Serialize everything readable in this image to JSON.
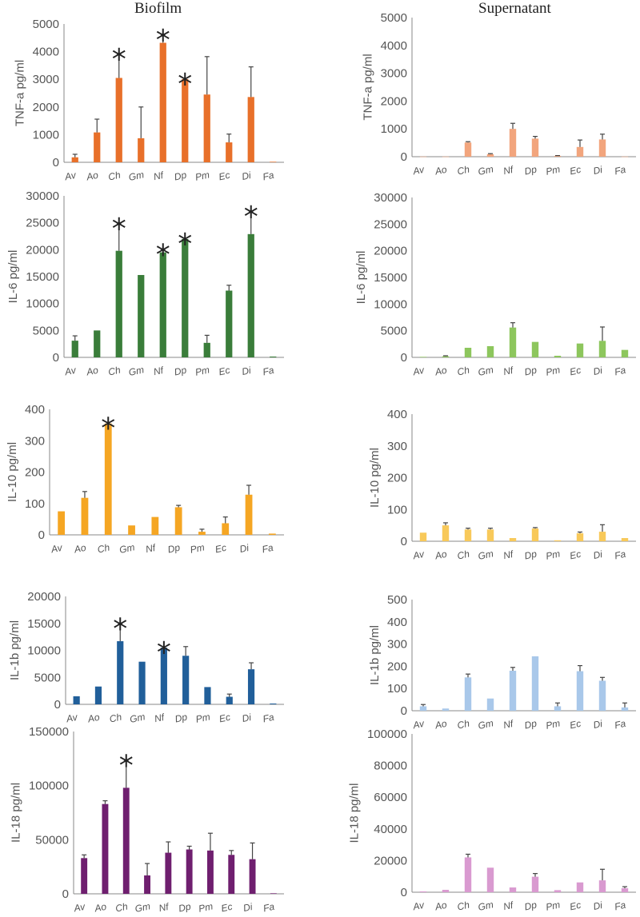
{
  "titles": {
    "biofilm": "Biofilm",
    "supernatant": "Supernatant"
  },
  "colors": {
    "tnf_biofilm": "#e8702a",
    "tnf_super": "#f2a57d",
    "il6_biofilm": "#3a7d3a",
    "il6_super": "#8dc65d",
    "il10_biofilm": "#f5a623",
    "il10_super": "#f8c95a",
    "il1b_biofilm": "#215f9a",
    "il1b_super": "#a9c8ea",
    "il18_biofilm": "#6f1f6f",
    "il18_super": "#d99ad0",
    "error_bar": "#444444",
    "axis": "#888888"
  },
  "chart_data": [
    {
      "id": "tnf-biofilm",
      "type": "bar",
      "title": "Biofilm",
      "ylabel": "TNF-a pg/ml",
      "ylim": [
        0,
        5000
      ],
      "ticks": [
        "0",
        "1000",
        "2000",
        "3000",
        "4000",
        "5000"
      ],
      "categories": [
        "Av",
        "Ao",
        "Ch",
        "Gm",
        "Nf",
        "Dp",
        "Pm",
        "Ec",
        "Di",
        "Fa"
      ],
      "values": [
        180,
        1080,
        3050,
        870,
        4320,
        3010,
        2450,
        720,
        2360,
        20
      ],
      "errors": [
        110,
        480,
        850,
        1130,
        280,
        0,
        1370,
        300,
        1090,
        0
      ],
      "significant": [
        "Ch",
        "Nf",
        "Dp"
      ],
      "color_key": "tnf_biofilm"
    },
    {
      "id": "tnf-super",
      "type": "bar",
      "title": "Supernatant",
      "ylabel": "TNF-a pg/ml",
      "ylim": [
        0,
        5000
      ],
      "ticks": [
        "0",
        "1000",
        "2000",
        "3000",
        "4000",
        "5000"
      ],
      "categories": [
        "Av",
        "Ao",
        "Ch",
        "Gm",
        "Nf",
        "Dp",
        "Pm",
        "Ec",
        "Di",
        "Fa"
      ],
      "values": [
        5,
        5,
        510,
        90,
        1000,
        650,
        30,
        350,
        620,
        5
      ],
      "errors": [
        0,
        0,
        30,
        20,
        200,
        80,
        10,
        250,
        190,
        0
      ],
      "significant": [],
      "color_key": "tnf_super"
    },
    {
      "id": "il6-biofilm",
      "type": "bar",
      "title": "Biofilm",
      "ylabel": "IL-6 pg/ml",
      "ylim": [
        0,
        30000
      ],
      "ticks": [
        "0",
        "5000",
        "10000",
        "15000",
        "20000",
        "25000",
        "30000"
      ],
      "categories": [
        "Av",
        "Ao",
        "Ch",
        "Gm",
        "Nf",
        "Dp",
        "Pm",
        "Ec",
        "Di",
        "Fa"
      ],
      "values": [
        3100,
        5000,
        19800,
        15300,
        19500,
        22000,
        2700,
        12400,
        22900,
        150
      ],
      "errors": [
        900,
        0,
        5000,
        0,
        500,
        0,
        1400,
        1000,
        4100,
        0
      ],
      "significant": [
        "Ch",
        "Nf",
        "Dp",
        "Di"
      ],
      "color_key": "il6_biofilm"
    },
    {
      "id": "il6-super",
      "type": "bar",
      "title": "Supernatant",
      "ylabel": "IL-6 pg/ml",
      "ylim": [
        0,
        30000
      ],
      "ticks": [
        "0",
        "5000",
        "10000",
        "15000",
        "20000",
        "25000",
        "30000"
      ],
      "categories": [
        "Av",
        "Ao",
        "Ch",
        "Gm",
        "Nf",
        "Dp",
        "Pm",
        "Ec",
        "Di",
        "Fa"
      ],
      "values": [
        100,
        200,
        1800,
        2100,
        5600,
        2900,
        300,
        2600,
        3100,
        1400
      ],
      "errors": [
        0,
        100,
        0,
        0,
        900,
        0,
        0,
        0,
        2600,
        0
      ],
      "significant": [],
      "color_key": "il6_super"
    },
    {
      "id": "il10-biofilm",
      "type": "bar",
      "title": "Biofilm",
      "ylabel": "IL-10 pg/ml",
      "ylim": [
        0,
        400
      ],
      "ticks": [
        "0",
        "100",
        "200",
        "300",
        "400"
      ],
      "categories": [
        "Av",
        "Ao",
        "Ch",
        "Gm",
        "Nf",
        "Dp",
        "Pm",
        "Ec",
        "Di",
        "Fa"
      ],
      "values": [
        75,
        118,
        355,
        30,
        57,
        88,
        10,
        37,
        128,
        4
      ],
      "errors": [
        0,
        20,
        0,
        0,
        0,
        6,
        8,
        20,
        30,
        0
      ],
      "significant": [
        "Ch"
      ],
      "color_key": "il10_biofilm"
    },
    {
      "id": "il10-super",
      "type": "bar",
      "title": "Supernatant",
      "ylabel": "IL-10 pg/ml",
      "ylim": [
        0,
        400
      ],
      "ticks": [
        "0",
        "100",
        "200",
        "300",
        "400"
      ],
      "categories": [
        "Av",
        "Ao",
        "Ch",
        "Gm",
        "Nf",
        "Dp",
        "Pm",
        "Ec",
        "Di",
        "Fa"
      ],
      "values": [
        27,
        50,
        37,
        37,
        10,
        40,
        3,
        25,
        30,
        10
      ],
      "errors": [
        0,
        8,
        4,
        4,
        0,
        3,
        0,
        4,
        22,
        0
      ],
      "significant": [],
      "color_key": "il10_super"
    },
    {
      "id": "il1b-biofilm",
      "type": "bar",
      "title": "Biofilm",
      "ylabel": "IL-1b pg/ml",
      "ylim": [
        0,
        20000
      ],
      "ticks": [
        "0",
        "5000",
        "10000",
        "15000",
        "20000"
      ],
      "categories": [
        "Av",
        "Ao",
        "Ch",
        "Gm",
        "Nf",
        "Dp",
        "Pm",
        "Ec",
        "Di",
        "Fa"
      ],
      "values": [
        1500,
        3300,
        11700,
        7900,
        10500,
        9000,
        3200,
        1400,
        6500,
        150
      ],
      "errors": [
        0,
        0,
        3200,
        0,
        0,
        1700,
        0,
        500,
        1200,
        0
      ],
      "significant": [
        "Ch",
        "Nf"
      ],
      "color_key": "il1b_biofilm"
    },
    {
      "id": "il1b-super",
      "type": "bar",
      "title": "Supernatant",
      "ylabel": "IL-1b pg/ml",
      "ylim": [
        0,
        500
      ],
      "ticks": [
        "0",
        "100",
        "200",
        "300",
        "400",
        "500"
      ],
      "categories": [
        "Av",
        "Ao",
        "Ch",
        "Gm",
        "Nf",
        "Dp",
        "Pm",
        "Ec",
        "Di",
        "Fa"
      ],
      "values": [
        20,
        10,
        150,
        55,
        180,
        245,
        20,
        178,
        135,
        15
      ],
      "errors": [
        8,
        0,
        15,
        0,
        15,
        0,
        15,
        25,
        15,
        20
      ],
      "significant": [],
      "color_key": "il1b_super"
    },
    {
      "id": "il18-biofilm",
      "type": "bar",
      "title": "Biofilm",
      "ylabel": "IL-18 pg/ml",
      "ylim": [
        0,
        150000
      ],
      "ticks": [
        "0",
        "50000",
        "100000",
        "150000"
      ],
      "categories": [
        "Av",
        "Ao",
        "Ch",
        "Gm",
        "Nf",
        "Dp",
        "Pm",
        "Ec",
        "Di",
        "Fa"
      ],
      "values": [
        33000,
        83000,
        98000,
        17000,
        38000,
        41000,
        40000,
        36000,
        32000,
        500
      ],
      "errors": [
        3000,
        3000,
        25000,
        11000,
        10000,
        3000,
        16000,
        4000,
        15000,
        0
      ],
      "significant": [
        "Ch"
      ],
      "color_key": "il18_biofilm"
    },
    {
      "id": "il18-super",
      "type": "bar",
      "title": "Supernatant",
      "ylabel": "IL-18 pg/ml",
      "ylim": [
        0,
        100000
      ],
      "ticks": [
        "0",
        "20000",
        "40000",
        "60000",
        "80000",
        "100000"
      ],
      "categories": [
        "Av",
        "Ao",
        "Ch",
        "Gm",
        "Nf",
        "Dp",
        "Pm",
        "Ec",
        "Di",
        "Fa"
      ],
      "values": [
        500,
        1500,
        22000,
        15500,
        3000,
        9800,
        1300,
        6200,
        7500,
        2500
      ],
      "errors": [
        0,
        0,
        2000,
        0,
        0,
        2000,
        0,
        0,
        7000,
        1000
      ],
      "significant": [],
      "color_key": "il18_super"
    }
  ]
}
